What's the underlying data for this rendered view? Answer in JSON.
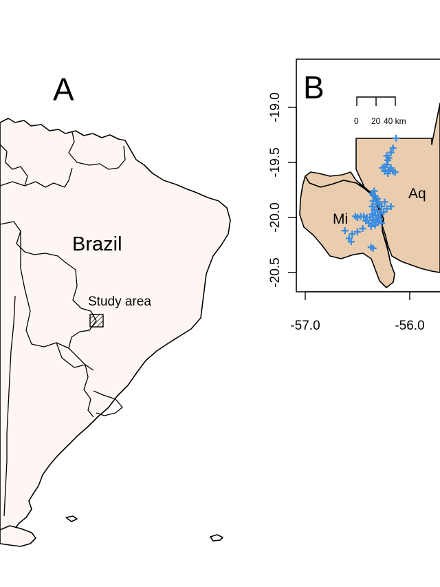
{
  "panel_a": {
    "letter": "A",
    "country_label": "Brazil",
    "study_area_label": "Study area",
    "colors": {
      "land": "#fdf6f3",
      "border": "#000000",
      "study_area_hatch": "#000000"
    }
  },
  "panel_b": {
    "letter": "B",
    "region_labels": {
      "aq": "Aq",
      "mi": "Mi"
    },
    "scale_bar": {
      "labels": [
        "0",
        "20",
        "40 km"
      ]
    },
    "axes": {
      "x_ticks": [
        -57.0,
        -56.0
      ],
      "x_tick_labels": [
        "-57.0",
        "-56.0"
      ],
      "y_ticks": [
        -19.0,
        -19.5,
        -20.0,
        -20.5
      ],
      "y_tick_labels": [
        "-19.0",
        "-19.5",
        "-20.0",
        "-20.5"
      ],
      "xlim": [
        -57.08,
        -55.7
      ],
      "ylim": [
        -20.68,
        -18.55
      ]
    },
    "colors": {
      "region_fill": "#e9cdae",
      "points": "#3a8de0"
    },
    "icon": "plus-marker-icon"
  },
  "chart_data": {
    "type": "scatter",
    "x_ticks": [
      -57.0,
      -56.0
    ],
    "y_ticks": [
      -19.0,
      -19.5,
      -20.0,
      -20.5
    ],
    "xlim": [
      -57.08,
      -55.7
    ],
    "ylim": [
      -20.68,
      -18.55
    ],
    "points": [
      [
        -56.13,
        -19.28
      ],
      [
        -56.16,
        -19.37
      ],
      [
        -56.18,
        -19.41
      ],
      [
        -56.2,
        -19.46
      ],
      [
        -56.21,
        -19.48
      ],
      [
        -56.22,
        -19.52
      ],
      [
        -56.24,
        -19.54
      ],
      [
        -56.26,
        -19.55
      ],
      [
        -56.18,
        -19.55
      ],
      [
        -56.2,
        -19.57
      ],
      [
        -56.24,
        -19.58
      ],
      [
        -56.21,
        -19.6
      ],
      [
        -56.16,
        -19.58
      ],
      [
        -56.14,
        -19.59
      ],
      [
        -56.22,
        -19.44
      ],
      [
        -56.35,
        -19.8
      ],
      [
        -56.33,
        -19.81
      ],
      [
        -56.31,
        -19.83
      ],
      [
        -56.3,
        -19.86
      ],
      [
        -56.29,
        -19.88
      ],
      [
        -56.27,
        -19.9
      ],
      [
        -56.32,
        -19.88
      ],
      [
        -56.35,
        -19.85
      ],
      [
        -56.36,
        -19.9
      ],
      [
        -56.34,
        -19.93
      ],
      [
        -56.31,
        -19.94
      ],
      [
        -56.28,
        -19.96
      ],
      [
        -56.25,
        -19.95
      ],
      [
        -56.22,
        -19.92
      ],
      [
        -56.18,
        -19.9
      ],
      [
        -56.3,
        -19.99
      ],
      [
        -56.33,
        -19.98
      ],
      [
        -56.36,
        -19.97
      ],
      [
        -56.38,
        -20.0
      ],
      [
        -56.35,
        -20.02
      ],
      [
        -56.32,
        -20.03
      ],
      [
        -56.29,
        -20.01
      ],
      [
        -56.41,
        -20.0
      ],
      [
        -56.44,
        -19.99
      ],
      [
        -56.47,
        -19.99
      ],
      [
        -56.5,
        -20.0
      ],
      [
        -56.52,
        -19.99
      ],
      [
        -56.42,
        -20.03
      ],
      [
        -56.39,
        -20.05
      ],
      [
        -56.36,
        -20.05
      ],
      [
        -56.37,
        -20.08
      ],
      [
        -56.33,
        -20.07
      ],
      [
        -56.3,
        -20.04
      ],
      [
        -56.27,
        -20.05
      ],
      [
        -56.34,
        -19.76
      ],
      [
        -56.36,
        -19.78
      ],
      [
        -56.24,
        -19.86
      ],
      [
        -56.45,
        -20.1
      ],
      [
        -56.5,
        -20.13
      ],
      [
        -56.55,
        -20.15
      ],
      [
        -56.62,
        -20.12
      ],
      [
        -56.58,
        -20.19
      ],
      [
        -56.56,
        -20.22
      ],
      [
        -56.37,
        -20.27
      ],
      [
        -56.35,
        -20.28
      ]
    ]
  }
}
